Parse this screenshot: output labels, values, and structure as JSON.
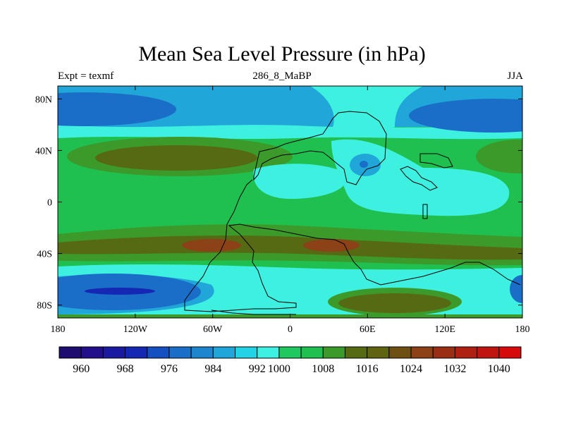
{
  "title": "Mean Sea Level Pressure (in hPa)",
  "subtitle_left": "Expt = texmf",
  "subtitle_center": "286_8_MaBP",
  "subtitle_right": "JJA",
  "map": {
    "lon_range": [
      -180,
      180
    ],
    "lat_range": [
      -90,
      90
    ],
    "x_ticks": [
      {
        "value": -180,
        "label": "180"
      },
      {
        "value": -120,
        "label": "120W"
      },
      {
        "value": -60,
        "label": "60W"
      },
      {
        "value": 0,
        "label": "0"
      },
      {
        "value": 60,
        "label": "60E"
      },
      {
        "value": 120,
        "label": "120E"
      },
      {
        "value": 180,
        "label": "180"
      }
    ],
    "y_ticks": [
      {
        "value": 80,
        "label": "80N"
      },
      {
        "value": 40,
        "label": "40N"
      },
      {
        "value": 0,
        "label": "0"
      },
      {
        "value": -40,
        "label": "40S"
      },
      {
        "value": -80,
        "label": "80S"
      }
    ]
  },
  "colorbar": {
    "colors": [
      "#1e0c6e",
      "#22108a",
      "#1a1aa0",
      "#1428b4",
      "#1450c0",
      "#1a6ec8",
      "#1e86ce",
      "#20a6d8",
      "#24d2e6",
      "#3ef0e0",
      "#20c860",
      "#20c050",
      "#3c9a2a",
      "#566a14",
      "#5e6410",
      "#6e5014",
      "#8a4216",
      "#9a2e14",
      "#ae2012",
      "#c01410",
      "#d60a0a"
    ],
    "labels": [
      {
        "after_bin": 1,
        "label": "960"
      },
      {
        "after_bin": 3,
        "label": "968"
      },
      {
        "after_bin": 5,
        "label": "976"
      },
      {
        "after_bin": 7,
        "label": "984"
      },
      {
        "after_bin": 9,
        "label": "992"
      },
      {
        "after_bin": 10,
        "label": "1000"
      },
      {
        "after_bin": 12,
        "label": "1008"
      },
      {
        "after_bin": 14,
        "label": "1016"
      },
      {
        "after_bin": 16,
        "label": "1024"
      },
      {
        "after_bin": 18,
        "label": "1032"
      },
      {
        "after_bin": 20,
        "label": "1040"
      }
    ]
  },
  "colors": {
    "ocean_low": "#1a6ec8",
    "low_mid": "#20a6d8",
    "near_1000": "#3ef0e0",
    "around_1008": "#20c050",
    "around_1016": "#3c9a2a",
    "high_1020": "#566a14",
    "high_1024": "#8a4216",
    "deep_low": "#1428b4"
  }
}
